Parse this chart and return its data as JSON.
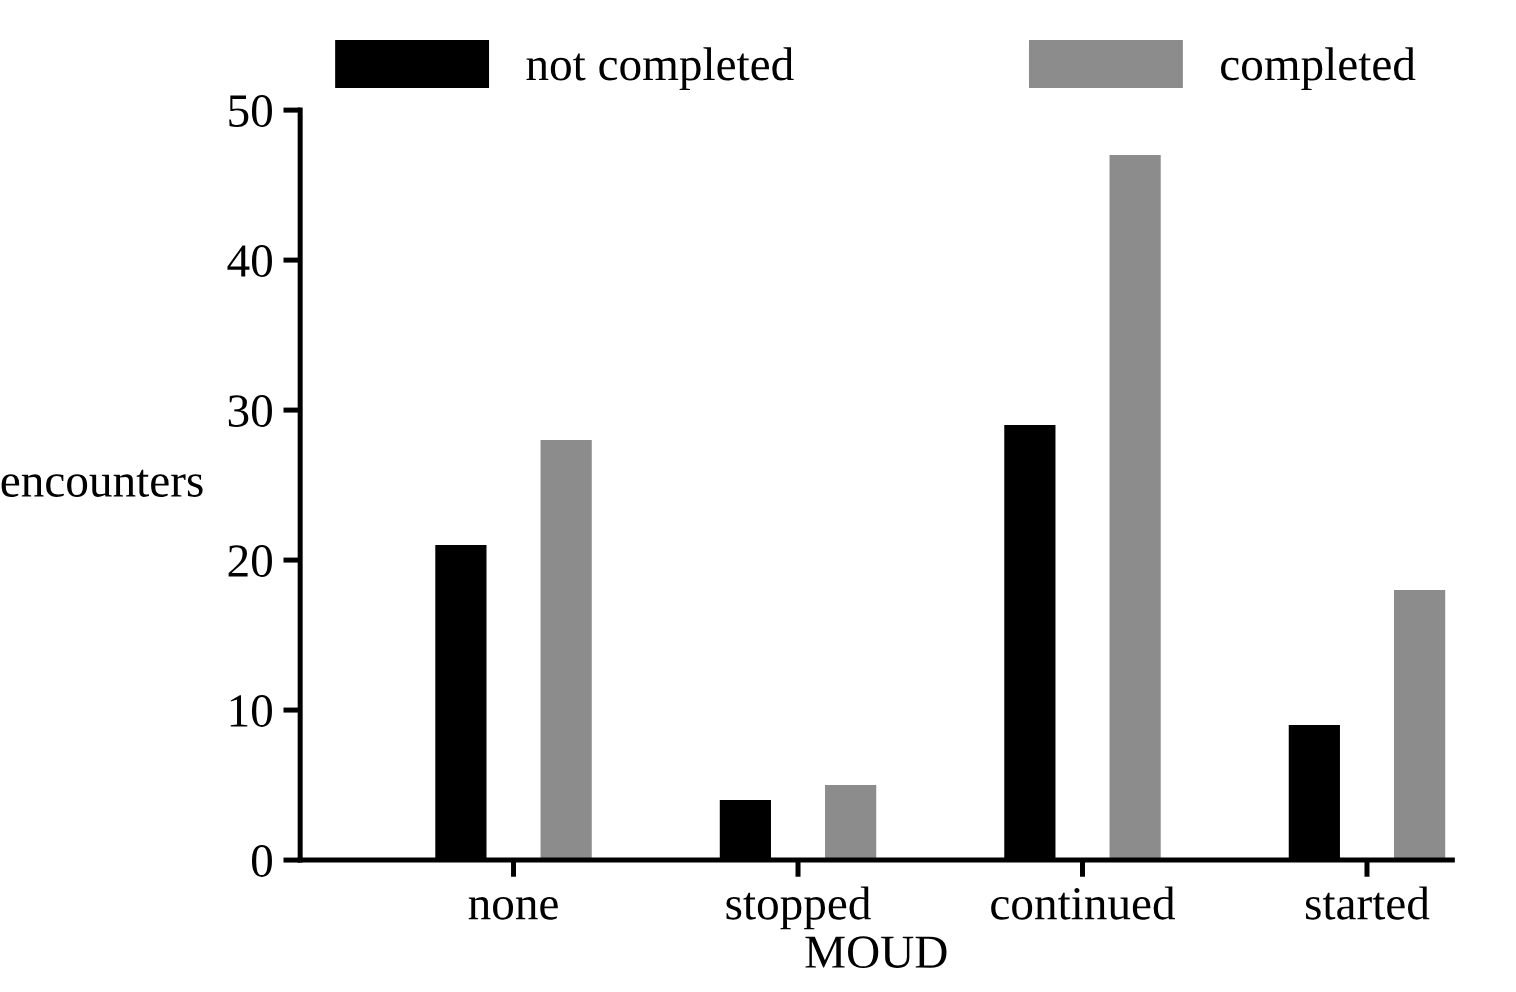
{
  "chart_data": {
    "type": "bar",
    "xlabel": "MOUD",
    "ylabel": "encounters",
    "categories": [
      "none",
      "stopped",
      "continued",
      "started"
    ],
    "series": [
      {
        "name": "not completed",
        "color": "#000000",
        "values": [
          21,
          4,
          29,
          9
        ]
      },
      {
        "name": "completed",
        "color": "#8c8c8c",
        "values": [
          28,
          5,
          47,
          18
        ]
      }
    ],
    "ylim": [
      0,
      50
    ],
    "yticks": [
      0,
      10,
      20,
      30,
      40,
      50
    ],
    "grid": false,
    "legend": "top"
  }
}
